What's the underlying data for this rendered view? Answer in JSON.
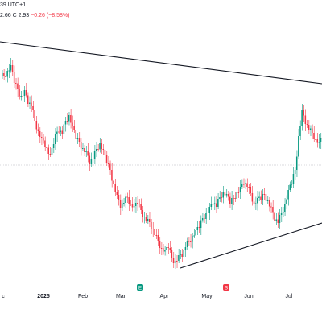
{
  "legend": {
    "line1": "39 UTC+1",
    "close_prefix": "2.66",
    "close_label": "C 2.93",
    "change": "−0.26 (−8.58%)"
  },
  "colors": {
    "up": "#089981",
    "down": "#f23645",
    "trendline": "#131722",
    "crosshair": "#b2b5be",
    "badge_earnings": "#089981",
    "badge_split": "#f23645"
  },
  "chart_data": {
    "type": "candlestick",
    "x_axis_labels": [
      "c",
      "2025",
      "Feb",
      "Mar",
      "Apr",
      "May",
      "Jun",
      "Jul"
    ],
    "event_badges": [
      {
        "name": "earnings-badge",
        "glyph": "E",
        "month": "Mar"
      },
      {
        "name": "event-badge",
        "glyph": "S",
        "month": "May"
      }
    ],
    "trendlines": [
      {
        "name": "upper-trendline",
        "from": [
          0,
          52
        ],
        "to": [
          1,
          104
        ]
      },
      {
        "name": "lower-trendline",
        "from": [
          0.56,
          333
        ],
        "to": [
          1,
          277
        ]
      }
    ],
    "candles_close_path": [
      95,
      90,
      85,
      100,
      110,
      120,
      115,
      125,
      130,
      150,
      165,
      175,
      180,
      190,
      185,
      170,
      160,
      165,
      150,
      145,
      160,
      170,
      175,
      185,
      190,
      200,
      195,
      185,
      180,
      190,
      200,
      210,
      230,
      245,
      255,
      250,
      245,
      255,
      260,
      250,
      260,
      270,
      275,
      280,
      290,
      300,
      310,
      315,
      305,
      320,
      325,
      320,
      315,
      305,
      300,
      295,
      290,
      280,
      270,
      265,
      260,
      250,
      255,
      245,
      240,
      245,
      250,
      245,
      240,
      235,
      225,
      230,
      240,
      255,
      250,
      245,
      240,
      250,
      260,
      270,
      275,
      265,
      255,
      240,
      225,
      210,
      170,
      140,
      150,
      160,
      165,
      175,
      180,
      170
    ]
  }
}
